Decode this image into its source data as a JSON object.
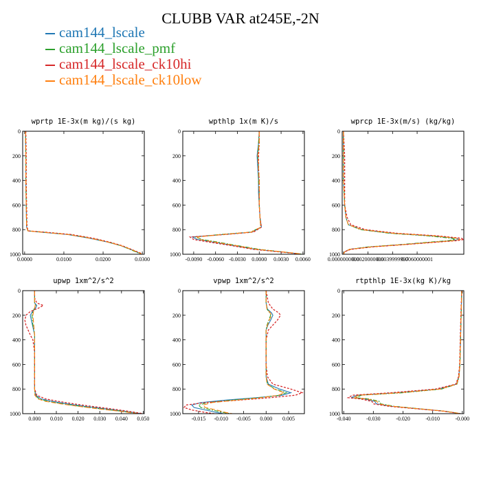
{
  "figure_title": "CLUBB VAR at245E,-2N",
  "legend": [
    {
      "label": "cam144_lscale",
      "color": "#1f77b4"
    },
    {
      "label": "cam144_lscale_pmf",
      "color": "#2ca02c"
    },
    {
      "label": "cam144_lscale_ck10hi",
      "color": "#d62728"
    },
    {
      "label": "cam144_lscale_ck10low",
      "color": "#ff7f0e"
    }
  ],
  "chart_data": [
    {
      "type": "line",
      "title": "wprtp  1E-3x(m kg)/(s kg)",
      "xlim": [
        -0.0005,
        0.0305
      ],
      "ylim": [
        1000,
        0
      ],
      "y_reversed": true,
      "xticks": [
        0.0,
        0.01,
        0.02,
        0.03
      ],
      "xtick_labels": [
        "0.0000",
        "0.0100",
        "0.0200",
        "0.0300"
      ],
      "yticks": [
        0,
        200,
        400,
        600,
        800,
        1000
      ],
      "y": [
        0,
        200,
        400,
        600,
        780,
        810,
        820,
        840,
        870,
        900,
        930,
        960,
        990,
        1000
      ],
      "series": [
        {
          "name": "cam144_lscale",
          "x": [
            0.0002,
            0.0003,
            0.0003,
            0.0004,
            0.0005,
            0.0008,
            0.004,
            0.011,
            0.0165,
            0.021,
            0.0245,
            0.027,
            0.0292,
            0.0298
          ]
        },
        {
          "name": "cam144_lscale_pmf",
          "x": [
            0.0002,
            0.0003,
            0.0003,
            0.0004,
            0.0005,
            0.0009,
            0.0045,
            0.0115,
            0.017,
            0.0212,
            0.0245,
            0.0268,
            0.029,
            0.0296
          ]
        },
        {
          "name": "cam144_lscale_ck10hi",
          "x": [
            0.0003,
            0.0004,
            0.0004,
            0.0005,
            0.0006,
            0.001,
            0.005,
            0.012,
            0.0175,
            0.0215,
            0.0248,
            0.0272,
            0.0295,
            0.03
          ]
        },
        {
          "name": "cam144_lscale_ck10low",
          "x": [
            0.0002,
            0.0003,
            0.0003,
            0.0004,
            0.0005,
            0.0008,
            0.0042,
            0.0112,
            0.0168,
            0.0211,
            0.0246,
            0.0271,
            0.0293,
            0.0299
          ]
        }
      ]
    },
    {
      "type": "line",
      "title": "wpthlp  1x(m K)/s",
      "xlim": [
        -0.0105,
        0.0062
      ],
      "ylim": [
        1000,
        0
      ],
      "y_reversed": true,
      "xticks": [
        -0.009,
        -0.006,
        -0.003,
        0.0,
        0.003,
        0.006
      ],
      "xtick_labels": [
        "-0.0090",
        "-0.0060",
        "-0.0030",
        "0.0000",
        "0.0030",
        "0.0060"
      ],
      "yticks": [
        0,
        200,
        400,
        600,
        800,
        1000
      ],
      "y": [
        0,
        100,
        200,
        300,
        400,
        500,
        600,
        700,
        780,
        820,
        840,
        860,
        880,
        900,
        930,
        960,
        990,
        1000
      ],
      "series": [
        {
          "name": "cam144_lscale",
          "x": [
            0.0,
            -0.0001,
            -0.0003,
            -0.0002,
            -0.0001,
            -0.0001,
            0.0,
            0.0001,
            0.0003,
            -0.001,
            -0.005,
            -0.0092,
            -0.0085,
            -0.0065,
            -0.0035,
            -0.0005,
            0.0045,
            0.0058
          ]
        },
        {
          "name": "cam144_lscale_pmf",
          "x": [
            0.0,
            -0.0001,
            -0.0002,
            -0.0001,
            -0.0001,
            0.0,
            0.0,
            0.0001,
            0.0002,
            -0.0012,
            -0.0055,
            -0.0088,
            -0.0078,
            -0.0058,
            -0.003,
            0.0,
            0.0046,
            0.0059
          ]
        },
        {
          "name": "cam144_lscale_ck10hi",
          "x": [
            0.0,
            0.0,
            -0.0001,
            -0.0001,
            0.0,
            0.0,
            0.0,
            0.0001,
            0.0003,
            -0.0008,
            -0.0048,
            -0.0095,
            -0.009,
            -0.007,
            -0.0038,
            -0.0008,
            0.0044,
            0.0057
          ]
        },
        {
          "name": "cam144_lscale_ck10low",
          "x": [
            0.0,
            0.0,
            -0.0002,
            -0.0001,
            0.0,
            0.0,
            0.0,
            0.0001,
            0.0002,
            -0.0011,
            -0.0052,
            -0.0085,
            -0.0082,
            -0.0062,
            -0.0032,
            -0.0003,
            0.0047,
            0.006
          ]
        }
      ]
    },
    {
      "type": "line",
      "title": "wprcp  1E-3x(m/s) (kg/kg)",
      "xlim": [
        -0.0001,
        0.0098
      ],
      "ylim": [
        1000,
        0
      ],
      "y_reversed": true,
      "xticks": [
        0.0,
        0.002,
        0.004,
        0.006
      ],
      "xtick_labels": [
        "0.0000000000",
        "0.0020000000",
        "0.0039999997",
        "0.0060000001"
      ],
      "yticks": [
        0,
        200,
        400,
        600,
        800,
        1000
      ],
      "y": [
        0,
        200,
        400,
        600,
        700,
        760,
        800,
        830,
        850,
        870,
        880,
        890,
        900,
        920,
        940,
        960,
        980,
        1000
      ],
      "series": [
        {
          "name": "cam144_lscale",
          "x": [
            0.0,
            0.0,
            0.0,
            0.0001,
            0.0002,
            0.0004,
            0.0015,
            0.004,
            0.0072,
            0.0092,
            0.0094,
            0.0088,
            0.0075,
            0.005,
            0.0022,
            0.0005,
            0.0001,
            0.0
          ]
        },
        {
          "name": "cam144_lscale_pmf",
          "x": [
            0.0,
            0.0,
            0.0,
            0.0001,
            0.0002,
            0.0004,
            0.0014,
            0.0038,
            0.0068,
            0.0088,
            0.0091,
            0.0085,
            0.0072,
            0.0048,
            0.002,
            0.0005,
            0.0001,
            0.0
          ]
        },
        {
          "name": "cam144_lscale_ck10hi",
          "x": [
            0.0,
            0.0001,
            0.0001,
            0.0001,
            0.0003,
            0.0006,
            0.0018,
            0.0044,
            0.0076,
            0.0096,
            0.0098,
            0.0092,
            0.0078,
            0.0052,
            0.0024,
            0.0006,
            0.0001,
            0.0
          ]
        },
        {
          "name": "cam144_lscale_ck10low",
          "x": [
            0.0,
            0.0,
            0.0,
            0.0001,
            0.0002,
            0.0004,
            0.0015,
            0.0041,
            0.0073,
            0.0093,
            0.0095,
            0.0089,
            0.0076,
            0.0051,
            0.0023,
            0.0005,
            0.0001,
            0.0
          ]
        }
      ]
    },
    {
      "type": "line",
      "title": "upwp  1xm^2/s^2",
      "xlim": [
        -0.0055,
        0.0505
      ],
      "ylim": [
        1000,
        0
      ],
      "y_reversed": true,
      "xticks": [
        0.0,
        0.01,
        0.02,
        0.03,
        0.04,
        0.05
      ],
      "xtick_labels": [
        "0.000",
        "0.010",
        "0.020",
        "0.030",
        "0.040",
        "0.050"
      ],
      "yticks": [
        0,
        200,
        400,
        600,
        800,
        1000
      ],
      "y": [
        0,
        60,
        100,
        120,
        140,
        170,
        200,
        240,
        280,
        320,
        360,
        400,
        500,
        600,
        700,
        800,
        850,
        880,
        900,
        920,
        940,
        960,
        980,
        1000
      ],
      "series": [
        {
          "name": "cam144_lscale",
          "x": [
            0.0,
            0.0,
            0.0,
            0.001,
            0.0005,
            -0.001,
            -0.002,
            -0.0015,
            -0.001,
            -0.0005,
            0.0,
            0.0,
            0.0,
            0.0,
            0.0,
            0.0,
            0.0005,
            0.003,
            0.008,
            0.015,
            0.023,
            0.032,
            0.041,
            0.049
          ]
        },
        {
          "name": "cam144_lscale_pmf",
          "x": [
            0.0,
            0.0,
            0.0,
            0.0005,
            0.0,
            -0.0008,
            -0.0012,
            -0.001,
            -0.0008,
            -0.0003,
            0.0,
            0.0,
            0.0,
            0.0,
            0.0,
            0.0,
            0.0003,
            0.002,
            0.006,
            0.013,
            0.021,
            0.03,
            0.04,
            0.048
          ]
        },
        {
          "name": "cam144_lscale_ck10hi",
          "x": [
            0.0,
            0.0,
            0.001,
            0.004,
            0.002,
            -0.002,
            -0.004,
            -0.0045,
            -0.004,
            -0.003,
            -0.002,
            -0.0008,
            0.0,
            0.0,
            0.0,
            0.0,
            0.001,
            0.005,
            0.011,
            0.018,
            0.026,
            0.035,
            0.043,
            0.05
          ]
        },
        {
          "name": "cam144_lscale_ck10low",
          "x": [
            0.0,
            0.0,
            0.0,
            0.0003,
            0.0,
            -0.0005,
            -0.0008,
            -0.0006,
            -0.0004,
            -0.0002,
            0.0,
            0.0,
            0.0,
            0.0,
            0.0,
            0.0,
            0.0001,
            0.0015,
            0.005,
            0.012,
            0.02,
            0.029,
            0.039,
            0.0475
          ]
        }
      ]
    },
    {
      "type": "line",
      "title": "vpwp  1xm^2/s^2",
      "xlim": [
        -0.0185,
        0.0085
      ],
      "ylim": [
        1000,
        0
      ],
      "y_reversed": true,
      "xticks": [
        -0.015,
        -0.01,
        -0.005,
        0.0,
        0.005
      ],
      "xtick_labels": [
        "-0.015",
        "-0.010",
        "-0.005",
        "0.000",
        "0.005"
      ],
      "yticks": [
        0,
        200,
        400,
        600,
        800,
        1000
      ],
      "y": [
        0,
        100,
        150,
        180,
        200,
        240,
        280,
        320,
        400,
        600,
        700,
        760,
        800,
        830,
        850,
        870,
        890,
        910,
        930,
        950,
        970,
        990,
        1000
      ],
      "series": [
        {
          "name": "cam144_lscale",
          "x": [
            0.0,
            0.0,
            0.0003,
            0.0012,
            0.0015,
            0.001,
            0.0004,
            0.0,
            0.0,
            0.0,
            0.0,
            0.0005,
            0.003,
            0.0055,
            0.0035,
            -0.002,
            -0.009,
            -0.0145,
            -0.0165,
            -0.016,
            -0.0135,
            -0.011,
            -0.0095
          ]
        },
        {
          "name": "cam144_lscale_pmf",
          "x": [
            0.0,
            0.0,
            0.0002,
            0.0008,
            0.001,
            0.0006,
            0.0002,
            0.0,
            0.0,
            0.0,
            0.0,
            0.0003,
            0.002,
            0.0045,
            0.003,
            -0.0015,
            -0.0075,
            -0.013,
            -0.015,
            -0.0145,
            -0.012,
            -0.0095,
            -0.008
          ]
        },
        {
          "name": "cam144_lscale_ck10hi",
          "x": [
            0.0,
            0.0005,
            0.0015,
            0.0028,
            0.0032,
            0.0025,
            0.0015,
            0.0005,
            0.0,
            0.0,
            0.0003,
            0.0015,
            0.0055,
            0.008,
            0.0065,
            0.001,
            -0.006,
            -0.0135,
            -0.0178,
            -0.0182,
            -0.0165,
            -0.0135,
            -0.0115
          ]
        },
        {
          "name": "cam144_lscale_ck10low",
          "x": [
            0.0,
            0.0,
            0.0002,
            0.0009,
            0.0012,
            0.0007,
            0.0003,
            0.0,
            0.0,
            0.0,
            0.0,
            0.0002,
            0.0018,
            0.004,
            0.0028,
            -0.001,
            -0.0065,
            -0.012,
            -0.014,
            -0.0135,
            -0.011,
            -0.009,
            -0.0075
          ]
        }
      ]
    },
    {
      "type": "line",
      "title": "rtpthlp  1E-3x(kg K)/kg",
      "xlim": [
        -0.0405,
        0.0005
      ],
      "ylim": [
        1000,
        0
      ],
      "y_reversed": true,
      "xticks": [
        -0.04,
        -0.03,
        -0.02,
        -0.01,
        0.0
      ],
      "xtick_labels": [
        "-0.040",
        "-0.030",
        "-0.020",
        "-0.010",
        "-0.000"
      ],
      "yticks": [
        0,
        200,
        400,
        600,
        800,
        1000
      ],
      "y": [
        0,
        200,
        400,
        600,
        700,
        760,
        800,
        830,
        850,
        870,
        880,
        900,
        920,
        940,
        960,
        980,
        1000
      ],
      "series": [
        {
          "name": "cam144_lscale",
          "x": [
            -0.0002,
            -0.0004,
            -0.0006,
            -0.0008,
            -0.0012,
            -0.002,
            -0.008,
            -0.022,
            -0.0355,
            -0.0375,
            -0.033,
            -0.0295,
            -0.029,
            -0.024,
            -0.015,
            -0.006,
            -0.0005
          ]
        },
        {
          "name": "cam144_lscale_pmf",
          "x": [
            -0.0002,
            -0.0004,
            -0.0006,
            -0.0008,
            -0.0011,
            -0.0018,
            -0.007,
            -0.02,
            -0.034,
            -0.036,
            -0.0315,
            -0.028,
            -0.0275,
            -0.023,
            -0.0145,
            -0.0058,
            -0.0005
          ]
        },
        {
          "name": "cam144_lscale_ck10hi",
          "x": [
            -0.0002,
            -0.0005,
            -0.0007,
            -0.0009,
            -0.0013,
            -0.0022,
            -0.009,
            -0.024,
            -0.037,
            -0.0385,
            -0.0345,
            -0.0305,
            -0.03,
            -0.0248,
            -0.0155,
            -0.0062,
            -0.0006
          ]
        },
        {
          "name": "cam144_lscale_ck10low",
          "x": [
            -0.0002,
            -0.0004,
            -0.0006,
            -0.0008,
            -0.0011,
            -0.0019,
            -0.0075,
            -0.021,
            -0.0348,
            -0.0368,
            -0.0322,
            -0.0288,
            -0.0282,
            -0.0235,
            -0.0148,
            -0.006,
            -0.0005
          ]
        }
      ]
    }
  ]
}
